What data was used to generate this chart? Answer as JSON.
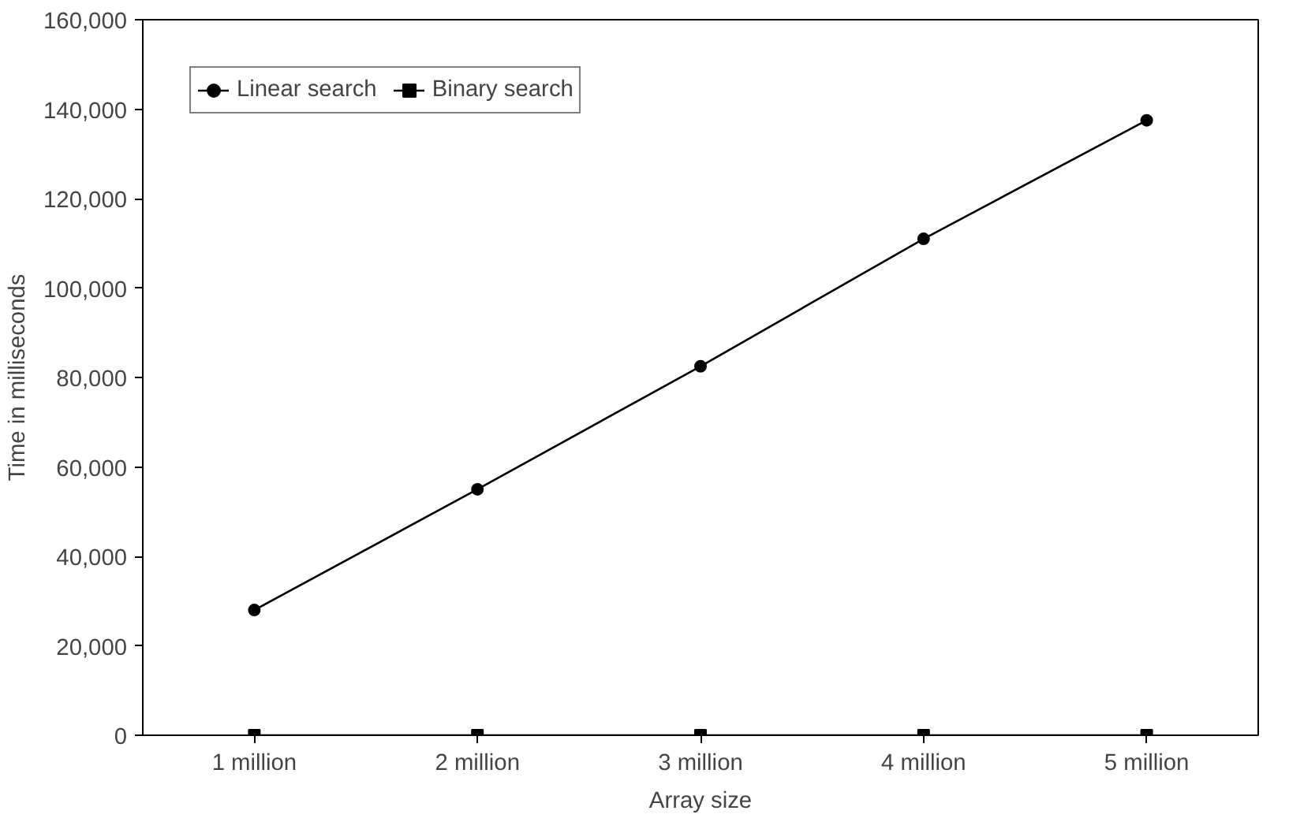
{
  "chart_data": {
    "type": "line",
    "xlabel": "Array size",
    "ylabel": "Time in milliseconds",
    "categories": [
      "1 million",
      "2 million",
      "3 million",
      "4 million",
      "5 million"
    ],
    "series": [
      {
        "name": "Linear search",
        "color": "#000000",
        "marker": "circle",
        "values": [
          28000,
          55000,
          82500,
          111000,
          137500
        ]
      },
      {
        "name": "Binary search",
        "color": "#000000",
        "marker": "square",
        "values": [
          0,
          0,
          0,
          0,
          0
        ]
      }
    ],
    "ylim": [
      0,
      160000
    ],
    "yticks": [
      {
        "value": 0,
        "label": "0"
      },
      {
        "value": 20000,
        "label": "20,000"
      },
      {
        "value": 40000,
        "label": "40,000"
      },
      {
        "value": 60000,
        "label": "60,000"
      },
      {
        "value": 80000,
        "label": "80,000"
      },
      {
        "value": 100000,
        "label": "100,000"
      },
      {
        "value": 120000,
        "label": "120,000"
      },
      {
        "value": 140000,
        "label": "140,000"
      },
      {
        "value": 160000,
        "label": "160,000"
      }
    ],
    "grid": false,
    "legend": "top left",
    "line_style": "solid"
  }
}
